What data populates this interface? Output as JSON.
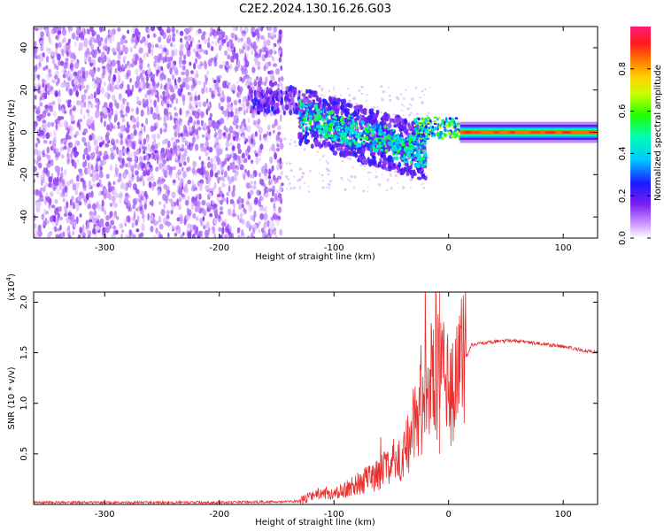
{
  "chart_data": [
    {
      "type": "heatmap",
      "title": "C2E2.2024.130.16.26.G03",
      "xlabel": "Height of straight line (km)",
      "ylabel": "Frequency (Hz)",
      "xlim": [
        -362,
        130
      ],
      "ylim": [
        -50,
        50
      ],
      "x_ticks": [
        -300,
        -200,
        -100,
        0,
        100
      ],
      "x_tick_labels": [
        "-300",
        "-200",
        "-100",
        "0",
        "100"
      ],
      "y_ticks": [
        -40,
        -20,
        0,
        20,
        40
      ],
      "y_tick_labels": [
        "-40",
        "-20",
        "0",
        "20",
        "40"
      ],
      "colorbar": {
        "label": "Normalized spectral amplitude",
        "range": [
          0,
          1
        ],
        "ticks": [
          0.0,
          0.2,
          0.4,
          0.6,
          0.8
        ],
        "tick_labels": [
          "0.0",
          "0.2",
          "0.4",
          "0.6",
          "0.8"
        ]
      },
      "regions": [
        {
          "name": "noise",
          "x_range": [
            -362,
            -145
          ],
          "freq_range": [
            -50,
            50
          ],
          "amplitude": 0.08
        },
        {
          "name": "signal-onset",
          "x_range": [
            -175,
            -130
          ],
          "freq_center": 15,
          "amplitude": 0.15
        },
        {
          "name": "scintillation",
          "x_range": [
            -130,
            -20
          ],
          "freq_center_start": 8,
          "freq_center_end": -10,
          "amplitude": 0.35
        },
        {
          "name": "transition",
          "x_range": [
            -30,
            10
          ],
          "freq_center": 2,
          "amplitude": 0.55
        },
        {
          "name": "tone",
          "x_range": [
            10,
            130
          ],
          "freq_center": 0,
          "amplitude": 0.85
        }
      ]
    },
    {
      "type": "line",
      "xlabel": "Height of straight line (km)",
      "ylabel": "SNR (10 * v/v)",
      "y_multiplier_label": "(x10",
      "y_multiplier_exp": "4",
      "xlim": [
        -362,
        130
      ],
      "ylim": [
        0,
        2.1
      ],
      "x_ticks": [
        -300,
        -200,
        -100,
        0,
        100
      ],
      "x_tick_labels": [
        "-300",
        "-200",
        "-100",
        "0",
        "100"
      ],
      "y_ticks": [
        0.5,
        1.0,
        1.5,
        2.0
      ],
      "y_tick_labels": [
        "0.5",
        "1.0",
        "1.5",
        "2.0"
      ],
      "series": [
        {
          "name": "SNR",
          "color": "#e8302e",
          "x": [
            -362,
            -300,
            -200,
            -130,
            -120,
            -110,
            -100,
            -80,
            -60,
            -40,
            -30,
            -20,
            -10,
            0,
            10,
            20,
            40,
            60,
            80,
            100,
            130
          ],
          "values": [
            0.02,
            0.02,
            0.02,
            0.03,
            0.08,
            0.12,
            0.1,
            0.2,
            0.3,
            0.5,
            0.8,
            1.2,
            1.3,
            1.1,
            1.3,
            1.58,
            1.61,
            1.62,
            1.59,
            1.56,
            1.5
          ]
        }
      ]
    }
  ]
}
